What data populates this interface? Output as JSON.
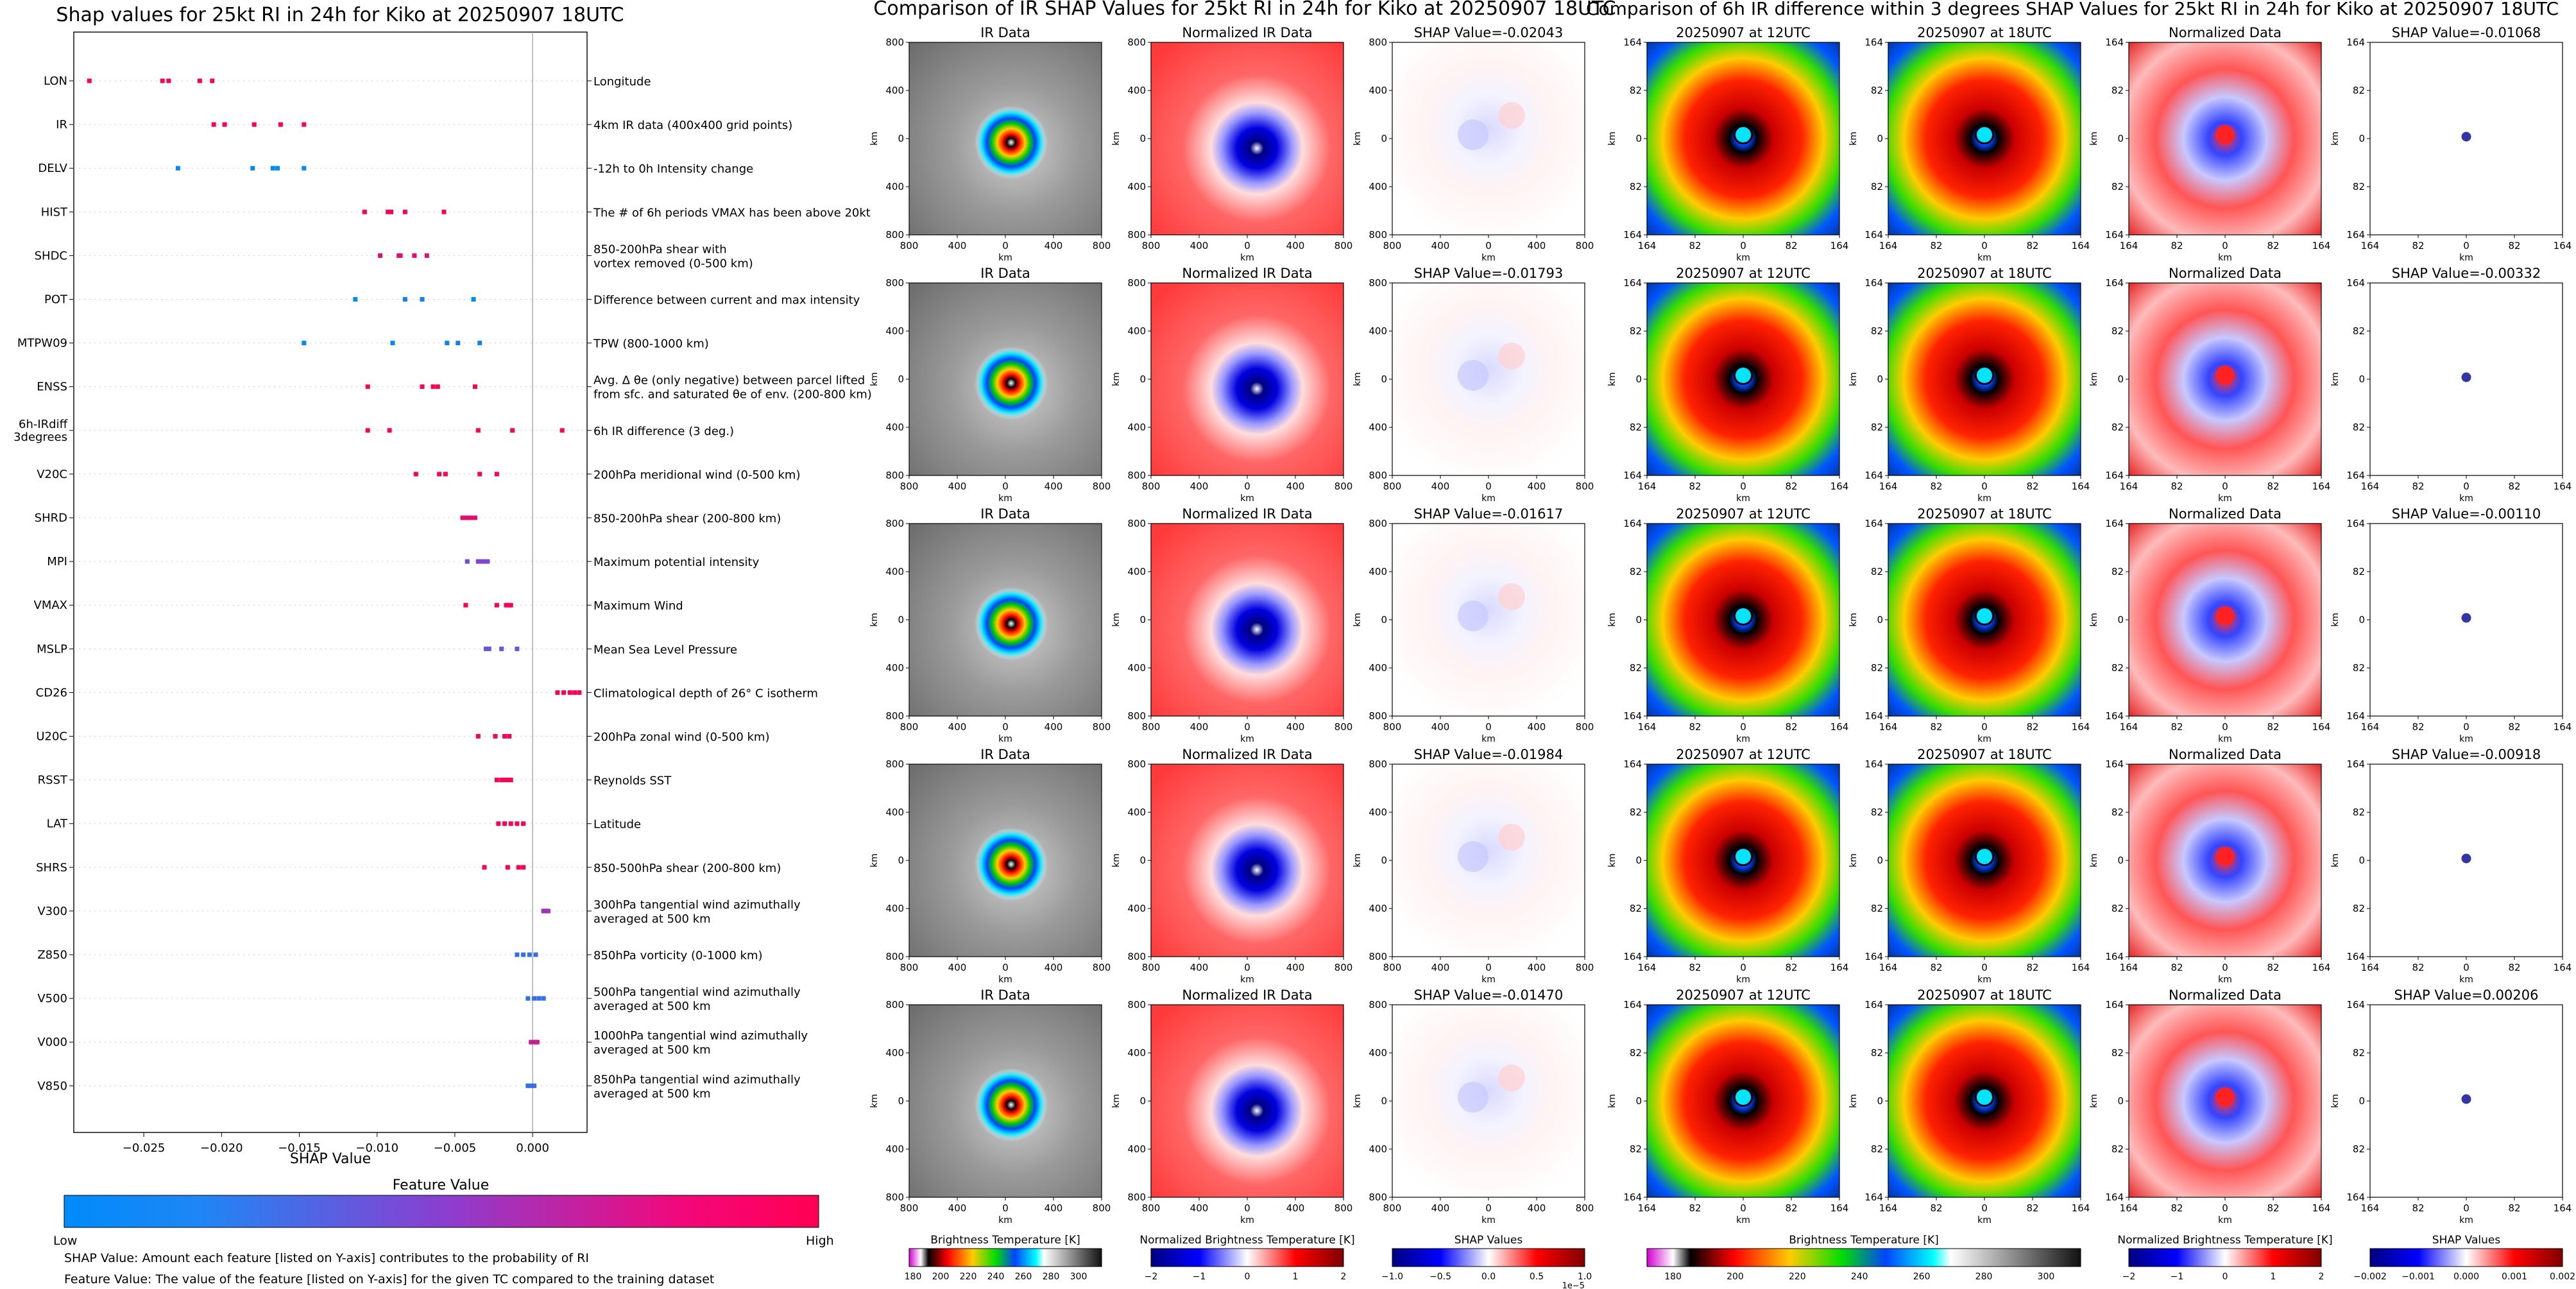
{
  "shap_panel": {
    "title": "Shap values for 25kt RI in 24h for Kiko at 20250907 18UTC",
    "xlabel": "SHAP Value",
    "colorbar_title": "Feature Value",
    "colorbar_low": "Low",
    "colorbar_high": "High",
    "note_line1": "SHAP Value: Amount each feature [listed on Y-axis] contributes to the probability of RI",
    "note_line2": "Feature Value: The value of the feature [listed on Y-axis] for the given TC compared to the training dataset"
  },
  "ir_panel": {
    "title": "Comparison of IR SHAP Values for 25kt RI in 24h for Kiko at 20250907 18UTC",
    "col_titles": [
      "IR Data",
      "Normalized IR Data"
    ],
    "shap_titles": [
      "SHAP Value=-0.02043",
      "SHAP Value=-0.01793",
      "SHAP Value=-0.01617",
      "SHAP Value=-0.01984",
      "SHAP Value=-0.01470"
    ],
    "axis_label": "km",
    "xticks": [
      "800",
      "400",
      "0",
      "400",
      "800"
    ],
    "yticks": [
      "800",
      "400",
      "0",
      "400",
      "800"
    ],
    "colorbars": [
      {
        "label": "Brightness Temperature [K]",
        "ticks": [
          "180",
          "200",
          "220",
          "240",
          "260",
          "280",
          "300"
        ]
      },
      {
        "label": "Normalized Brightness Temperature [K]",
        "ticks": [
          "−2",
          "−1",
          "0",
          "1",
          "2"
        ]
      },
      {
        "label": "SHAP Values",
        "ticks": [
          "−1.0",
          "−0.5",
          "0.0",
          "0.5",
          "1.0"
        ],
        "offset": "1e−5"
      }
    ]
  },
  "diff_panel": {
    "title": "Comparison of 6h IR difference within 3 degrees SHAP Values for 25kt RI in 24h for Kiko at 20250907 18UTC",
    "col_titles": [
      "20250907 at 12UTC",
      "20250907 at 18UTC",
      "Normalized Data"
    ],
    "shap_titles": [
      "SHAP Value=-0.01068",
      "SHAP Value=-0.00332",
      "SHAP Value=-0.00110",
      "SHAP Value=-0.00918",
      "SHAP Value=0.00206"
    ],
    "axis_label": "km",
    "xticks": [
      "164",
      "82",
      "0",
      "82",
      "164"
    ],
    "yticks": [
      "164",
      "82",
      "0",
      "82",
      "164"
    ],
    "colorbars": [
      {
        "label": "Brightness Temperature [K]",
        "ticks": [
          "180",
          "200",
          "220",
          "240",
          "260",
          "280",
          "300"
        ]
      },
      {
        "label": "Normalized Brightness Temperature [K]",
        "ticks": [
          "−2",
          "−1",
          "0",
          "1",
          "2"
        ]
      },
      {
        "label": "SHAP Values",
        "ticks": [
          "−0.002",
          "−0.001",
          "0.000",
          "0.001",
          "0.002"
        ]
      }
    ]
  },
  "chart_data": [
    {
      "type": "scatter",
      "title": "Shap values for 25kt RI in 24h for Kiko at 20250907 18UTC",
      "xlabel": "SHAP Value",
      "xlim": [
        -0.0295,
        0.0035
      ],
      "xticks": [
        -0.025,
        -0.02,
        -0.015,
        -0.01,
        -0.005,
        0.0
      ],
      "xtick_labels": [
        "−0.025",
        "−0.020",
        "−0.015",
        "−0.010",
        "−0.005",
        "0.000"
      ],
      "colorbar": {
        "label": "Feature Value",
        "low": "Low",
        "high": "High",
        "colors": [
          "#008bfb",
          "#6f4ddc",
          "#ff0052"
        ]
      },
      "features": [
        {
          "name": "LON",
          "desc": "Longitude",
          "points": [
            [
              -0.0285,
              1.0
            ],
            [
              -0.0238,
              1.0
            ],
            [
              -0.0234,
              1.0
            ],
            [
              -0.0214,
              1.0
            ],
            [
              -0.0206,
              1.0
            ]
          ]
        },
        {
          "name": "IR",
          "desc": "4km IR data (400x400 grid points)",
          "points": [
            [
              -0.0205,
              1.0
            ],
            [
              -0.0198,
              1.0
            ],
            [
              -0.0179,
              1.0
            ],
            [
              -0.0162,
              1.0
            ],
            [
              -0.0147,
              1.0
            ]
          ]
        },
        {
          "name": "DELV",
          "desc": "-12h to 0h Intensity change",
          "points": [
            [
              -0.0228,
              0.0
            ],
            [
              -0.018,
              0.0
            ],
            [
              -0.0167,
              0.0
            ],
            [
              -0.0164,
              0.0
            ],
            [
              -0.0147,
              0.0
            ]
          ]
        },
        {
          "name": "HIST",
          "desc": "The # of 6h periods VMAX has been above 20kt",
          "points": [
            [
              -0.0108,
              1.0
            ],
            [
              -0.0093,
              1.0
            ],
            [
              -0.0091,
              1.0
            ],
            [
              -0.0082,
              1.0
            ],
            [
              -0.0057,
              1.0
            ]
          ]
        },
        {
          "name": "SHDC",
          "desc": "850-200hPa shear with|vortex removed (0-500 km)",
          "points": [
            [
              -0.0098,
              0.9
            ],
            [
              -0.0086,
              0.85
            ],
            [
              -0.0085,
              0.9
            ],
            [
              -0.0076,
              0.9
            ],
            [
              -0.0068,
              0.85
            ]
          ]
        },
        {
          "name": "POT",
          "desc": "Difference between current and max intensity",
          "points": [
            [
              -0.0114,
              0.0
            ],
            [
              -0.0082,
              0.05
            ],
            [
              -0.0071,
              0.05
            ],
            [
              -0.0038,
              0.0
            ]
          ]
        },
        {
          "name": "MTPW09",
          "desc": "TPW (800-1000 km)",
          "points": [
            [
              -0.0147,
              0.0
            ],
            [
              -0.009,
              0.0
            ],
            [
              -0.0055,
              0.05
            ],
            [
              -0.0048,
              0.05
            ],
            [
              -0.0034,
              0.05
            ]
          ]
        },
        {
          "name": "ENSS",
          "desc": "Avg. Δ θe (only negative) between parcel lifted|from sfc. and saturated θe of env. (200-800 km)",
          "points": [
            [
              -0.0106,
              1.0
            ],
            [
              -0.0071,
              1.0
            ],
            [
              -0.0064,
              1.0
            ],
            [
              -0.0061,
              1.0
            ],
            [
              -0.0037,
              1.0
            ]
          ]
        },
        {
          "name": "6h-IRdiff|3degrees",
          "desc": "6h IR difference (3 deg.)",
          "points": [
            [
              -0.0106,
              1.0
            ],
            [
              -0.0092,
              1.0
            ],
            [
              -0.0035,
              1.0
            ],
            [
              -0.0013,
              1.0
            ],
            [
              0.0019,
              1.0
            ]
          ]
        },
        {
          "name": "V20C",
          "desc": "200hPa meridional wind (0-500 km)",
          "points": [
            [
              -0.0075,
              1.0
            ],
            [
              -0.006,
              1.0
            ],
            [
              -0.0056,
              1.0
            ],
            [
              -0.0034,
              1.0
            ],
            [
              -0.0023,
              1.0
            ]
          ]
        },
        {
          "name": "SHRD",
          "desc": "850-200hPa shear (200-800 km)",
          "points": [
            [
              -0.0045,
              0.9
            ],
            [
              -0.0043,
              0.9
            ],
            [
              -0.0041,
              0.9
            ],
            [
              -0.0039,
              0.9
            ],
            [
              -0.0037,
              0.9
            ]
          ]
        },
        {
          "name": "MPI",
          "desc": "Maximum potential intensity",
          "points": [
            [
              -0.0042,
              0.4
            ],
            [
              -0.0035,
              0.45
            ],
            [
              -0.0033,
              0.45
            ],
            [
              -0.0031,
              0.45
            ],
            [
              -0.0029,
              0.45
            ]
          ]
        },
        {
          "name": "VMAX",
          "desc": "Maximum Wind",
          "points": [
            [
              -0.0043,
              1.0
            ],
            [
              -0.0023,
              1.0
            ],
            [
              -0.0017,
              1.0
            ],
            [
              -0.0015,
              1.0
            ],
            [
              -0.0014,
              1.0
            ]
          ]
        },
        {
          "name": "MSLP",
          "desc": "Mean Sea Level Pressure",
          "points": [
            [
              -0.003,
              0.35
            ],
            [
              -0.0028,
              0.35
            ],
            [
              -0.002,
              0.35
            ],
            [
              -0.001,
              0.35
            ]
          ]
        },
        {
          "name": "CD26",
          "desc": "Climatological depth of 26° C isotherm",
          "points": [
            [
              0.0016,
              1.0
            ],
            [
              0.002,
              1.0
            ],
            [
              0.0024,
              1.0
            ],
            [
              0.0027,
              1.0
            ],
            [
              0.003,
              1.0
            ]
          ]
        },
        {
          "name": "U20C",
          "desc": "200hPa zonal wind (0-500 km)",
          "points": [
            [
              -0.0035,
              1.0
            ],
            [
              -0.0024,
              1.0
            ],
            [
              -0.0018,
              1.0
            ],
            [
              -0.0015,
              1.0
            ]
          ]
        },
        {
          "name": "RSST",
          "desc": "Reynolds SST",
          "points": [
            [
              -0.0023,
              1.0
            ],
            [
              -0.002,
              1.0
            ],
            [
              -0.0018,
              1.0
            ],
            [
              -0.0016,
              1.0
            ],
            [
              -0.0014,
              1.0
            ]
          ]
        },
        {
          "name": "LAT",
          "desc": "Latitude",
          "points": [
            [
              -0.0022,
              1.0
            ],
            [
              -0.0018,
              1.0
            ],
            [
              -0.0014,
              1.0
            ],
            [
              -0.001,
              1.0
            ],
            [
              -0.0006,
              1.0
            ]
          ]
        },
        {
          "name": "SHRS",
          "desc": "850-500hPa shear (200-800 km)",
          "points": [
            [
              -0.0031,
              1.0
            ],
            [
              -0.0016,
              1.0
            ],
            [
              -0.0009,
              1.0
            ],
            [
              -0.0006,
              1.0
            ]
          ]
        },
        {
          "name": "V300",
          "desc": "300hPa tangential wind azimuthally|averaged at 500 km",
          "points": [
            [
              0.0007,
              0.6
            ],
            [
              0.0008,
              0.6
            ],
            [
              0.0009,
              0.6
            ],
            [
              0.001,
              0.6
            ]
          ]
        },
        {
          "name": "Z850",
          "desc": "850hPa vorticity (0-1000 km)",
          "points": [
            [
              -0.001,
              0.2
            ],
            [
              -0.0006,
              0.2
            ],
            [
              -0.0002,
              0.2
            ],
            [
              0.0002,
              0.2
            ]
          ]
        },
        {
          "name": "V500",
          "desc": "500hPa tangential wind azimuthally|averaged at 500 km",
          "points": [
            [
              -0.0003,
              0.15
            ],
            [
              0.0001,
              0.2
            ],
            [
              0.0004,
              0.2
            ],
            [
              0.0007,
              0.15
            ]
          ]
        },
        {
          "name": "V000",
          "desc": "1000hPa tangential wind azimuthally|averaged at 500 km",
          "points": [
            [
              -0.0001,
              0.75
            ],
            [
              0.0001,
              0.75
            ],
            [
              0.0002,
              0.75
            ],
            [
              0.0003,
              0.75
            ]
          ]
        },
        {
          "name": "V850",
          "desc": "850hPa tangential wind azimuthally|averaged at 500 km",
          "points": [
            [
              -0.0003,
              0.15
            ],
            [
              -0.0001,
              0.2
            ],
            [
              0.0001,
              0.2
            ]
          ]
        }
      ]
    },
    {
      "type": "heatmap",
      "title": "Comparison of IR SHAP Values for 25kt RI in 24h for Kiko at 20250907 18UTC",
      "rows": 5,
      "columns": [
        "IR Data",
        "Normalized IR Data",
        "SHAP"
      ],
      "shap_values": [
        -0.02043,
        -0.01793,
        -0.01617,
        -0.01984,
        -0.0147
      ],
      "xlim": [
        -800,
        800
      ],
      "ylim": [
        -800,
        800
      ]
    },
    {
      "type": "heatmap",
      "title": "Comparison of 6h IR difference within 3 degrees SHAP Values for 25kt RI in 24h for Kiko at 20250907 18UTC",
      "rows": 5,
      "columns": [
        "20250907 at 12UTC",
        "20250907 at 18UTC",
        "Normalized Data",
        "SHAP"
      ],
      "shap_values": [
        -0.01068,
        -0.00332,
        -0.0011,
        -0.00918,
        0.00206
      ],
      "xlim": [
        -164,
        164
      ],
      "ylim": [
        -164,
        164
      ]
    }
  ]
}
